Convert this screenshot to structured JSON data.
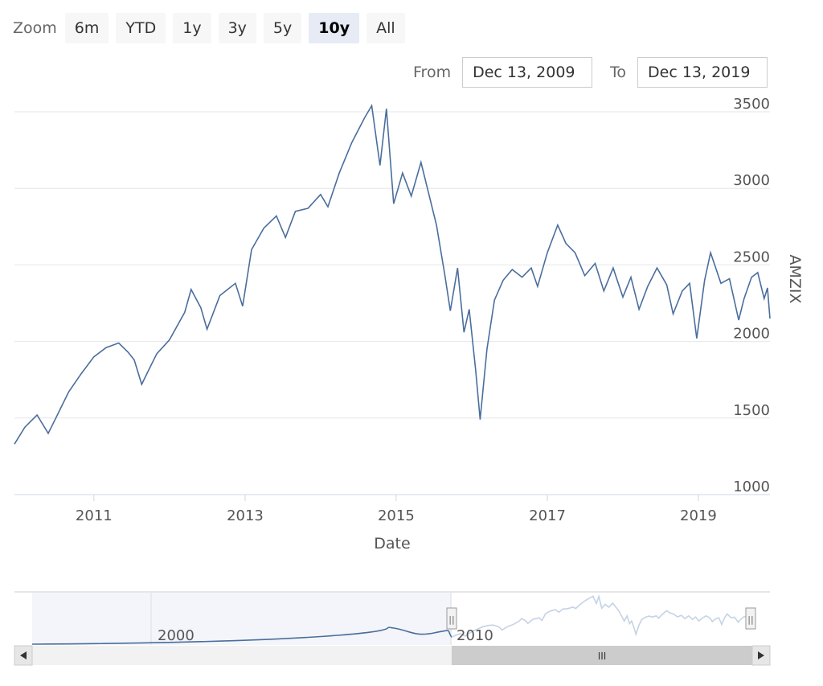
{
  "zoom": {
    "label": "Zoom",
    "buttons": [
      {
        "label": "6m",
        "active": false
      },
      {
        "label": "YTD",
        "active": false
      },
      {
        "label": "1y",
        "active": false
      },
      {
        "label": "3y",
        "active": false
      },
      {
        "label": "5y",
        "active": false
      },
      {
        "label": "10y",
        "active": true
      },
      {
        "label": "All",
        "active": false
      }
    ]
  },
  "range": {
    "from_label": "From",
    "from_value": "Dec 13, 2009",
    "to_label": "To",
    "to_value": "Dec 13, 2019"
  },
  "colors": {
    "series": "#4a6e9c",
    "navigator_fill": "#d9e2ee",
    "navigator_line_outside": "#c5d3e6",
    "grid": "#e6e6e6"
  },
  "navigator": {
    "tick_labels": [
      "2000",
      "2010"
    ],
    "handle_glyph": "||",
    "scrollbar_grip": "III"
  },
  "chart_data": {
    "type": "line",
    "title": "",
    "xlabel": "Date",
    "ylabel": "AMZIX",
    "xlim": [
      "2009-12-13",
      "2019-12-13"
    ],
    "ylim": [
      1000,
      3600
    ],
    "x_ticks": [
      "2011",
      "2013",
      "2015",
      "2017",
      "2019"
    ],
    "y_ticks": [
      "1000",
      "1500",
      "2000",
      "2500",
      "3000",
      "3500"
    ],
    "grid": true,
    "series": [
      {
        "name": "",
        "x": [
          "2009-12-13",
          "2010-02-01",
          "2010-04-01",
          "2010-05-25",
          "2010-07-01",
          "2010-09-01",
          "2010-11-01",
          "2011-01-01",
          "2011-03-01",
          "2011-05-01",
          "2011-06-15",
          "2011-07-15",
          "2011-08-20",
          "2011-09-25",
          "2011-11-01",
          "2012-01-01",
          "2012-03-15",
          "2012-04-15",
          "2012-06-01",
          "2012-07-01",
          "2012-09-01",
          "2012-11-15",
          "2012-12-20",
          "2013-02-01",
          "2013-04-01",
          "2013-06-01",
          "2013-07-15",
          "2013-09-01",
          "2013-11-01",
          "2014-01-01",
          "2014-02-05",
          "2014-04-01",
          "2014-06-01",
          "2014-08-01",
          "2014-09-05",
          "2014-10-15",
          "2014-11-15",
          "2014-12-20",
          "2015-02-01",
          "2015-03-15",
          "2015-05-01",
          "2015-06-01",
          "2015-07-15",
          "2015-08-25",
          "2015-09-20",
          "2015-10-25",
          "2015-11-25",
          "2015-12-20",
          "2016-01-20",
          "2016-02-11",
          "2016-03-15",
          "2016-04-20",
          "2016-06-01",
          "2016-07-15",
          "2016-09-01",
          "2016-10-15",
          "2016-11-15",
          "2017-01-01",
          "2017-02-20",
          "2017-04-01",
          "2017-05-15",
          "2017-07-01",
          "2017-08-20",
          "2017-10-01",
          "2017-11-15",
          "2018-01-01",
          "2018-02-09",
          "2018-03-20",
          "2018-05-01",
          "2018-06-15",
          "2018-08-01",
          "2018-09-01",
          "2018-10-15",
          "2018-11-20",
          "2018-12-24",
          "2019-01-31",
          "2019-03-01",
          "2019-04-20",
          "2019-05-31",
          "2019-07-15",
          "2019-08-10",
          "2019-09-15",
          "2019-10-15",
          "2019-11-15",
          "2019-12-01",
          "2019-12-13"
        ],
        "y": [
          1330,
          1440,
          1520,
          1400,
          1500,
          1670,
          1790,
          1900,
          1960,
          1990,
          1930,
          1880,
          1720,
          1820,
          1920,
          2010,
          2190,
          2340,
          2220,
          2080,
          2300,
          2380,
          2230,
          2600,
          2740,
          2820,
          2680,
          2850,
          2870,
          2960,
          2880,
          3100,
          3300,
          3460,
          3540,
          3150,
          3520,
          2900,
          3100,
          2950,
          3170,
          3000,
          2760,
          2430,
          2200,
          2480,
          2060,
          2210,
          1820,
          1490,
          1950,
          2270,
          2400,
          2470,
          2420,
          2480,
          2360,
          2580,
          2760,
          2640,
          2580,
          2430,
          2510,
          2330,
          2480,
          2290,
          2420,
          2210,
          2360,
          2480,
          2370,
          2180,
          2330,
          2380,
          2020,
          2400,
          2580,
          2380,
          2410,
          2140,
          2280,
          2420,
          2450,
          2280,
          2350,
          2150
        ]
      }
    ]
  }
}
